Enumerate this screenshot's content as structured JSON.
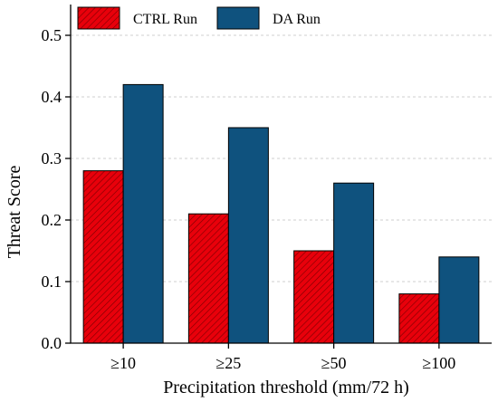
{
  "chart_data": {
    "type": "bar",
    "title": "",
    "xlabel": "Precipitation threshold (mm/72 h)",
    "ylabel": "Threat Score",
    "categories": [
      "≥10",
      "≥25",
      "≥50",
      "≥100"
    ],
    "series": [
      {
        "name": "CTRL Run",
        "values": [
          0.28,
          0.21,
          0.15,
          0.08
        ],
        "color": "#e8000b",
        "pattern": "diagonal-hatch"
      },
      {
        "name": "DA Run",
        "values": [
          0.42,
          0.35,
          0.26,
          0.14
        ],
        "color": "#0f527e",
        "pattern": "solid"
      }
    ],
    "ylim": [
      0,
      0.55
    ],
    "yticks": [
      "0.0",
      "0.1",
      "0.2",
      "0.3",
      "0.4",
      "0.5"
    ],
    "grid": true,
    "legend_position": "top-left"
  }
}
